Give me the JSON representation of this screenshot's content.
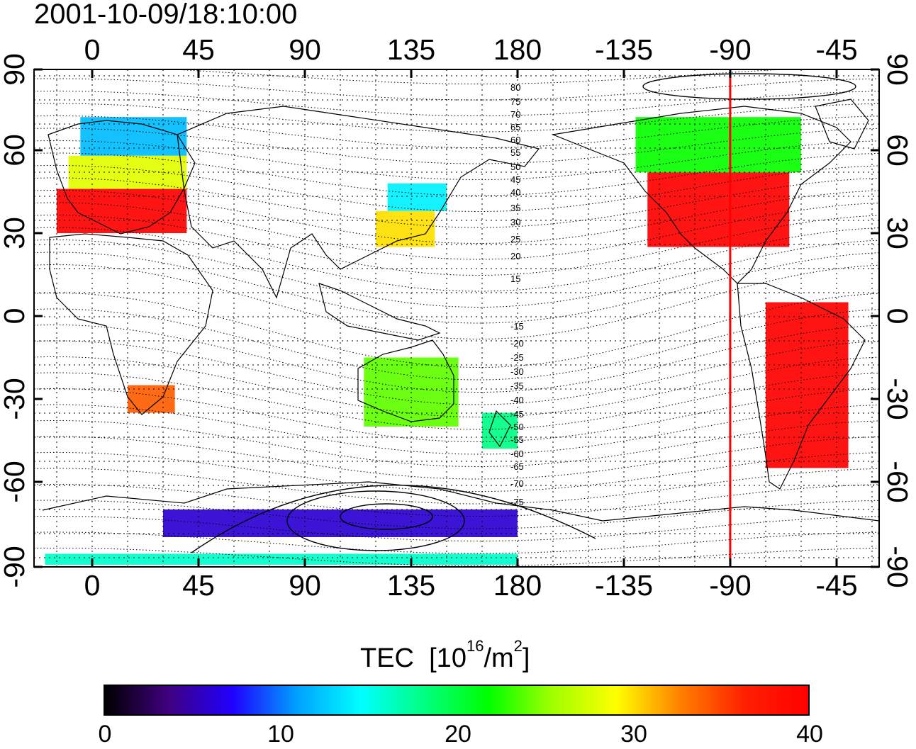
{
  "title": "2001-10-09/18:10:00",
  "lon_ticks": [
    "0",
    "45",
    "90",
    "135",
    "180",
    "-135",
    "-90",
    "-45"
  ],
  "lat_ticks": [
    "90",
    "60",
    "30",
    "0",
    "-30",
    "-60",
    "-90"
  ],
  "colorbar": {
    "label": "TEC",
    "unit_prefix": "[10",
    "unit_exp1": "16",
    "unit_mid": "/m",
    "unit_exp2": "2",
    "unit_suffix": "]",
    "min": 0,
    "max": 40,
    "ticks": [
      "0",
      "10",
      "20",
      "30",
      "40"
    ],
    "colors": [
      "#000000",
      "#400080",
      "#2000ff",
      "#00a0ff",
      "#00ffff",
      "#00ff80",
      "#00ff00",
      "#a0ff00",
      "#ffff00",
      "#ff8000",
      "#ff2000",
      "#ff0000"
    ]
  },
  "contour_labels": [
    "80",
    "75",
    "70",
    "65",
    "60",
    "55",
    "50",
    "45",
    "40",
    "35",
    "30",
    "25",
    "20",
    "15",
    "-15",
    "-20",
    "-25",
    "-30",
    "-35",
    "-40",
    "-45",
    "-50",
    "-55",
    "-60",
    "-65",
    "-70",
    "-75"
  ],
  "marker_longitude": -90,
  "marker_color": "#ff0000",
  "tec_regions": [
    {
      "name": "europe-high-lat",
      "lon": [
        -5,
        40
      ],
      "lat": [
        58,
        72
      ],
      "tec": 12
    },
    {
      "name": "europe-mid",
      "lon": [
        -10,
        40
      ],
      "lat": [
        46,
        58
      ],
      "tec": 28
    },
    {
      "name": "europe-south",
      "lon": [
        -15,
        40
      ],
      "lat": [
        30,
        46
      ],
      "tec": 40
    },
    {
      "name": "east-asia-north",
      "lon": [
        125,
        150
      ],
      "lat": [
        38,
        48
      ],
      "tec": 14
    },
    {
      "name": "east-asia-south",
      "lon": [
        120,
        145
      ],
      "lat": [
        25,
        38
      ],
      "tec": 30
    },
    {
      "name": "north-america",
      "lon": [
        -125,
        -65
      ],
      "lat": [
        25,
        52
      ],
      "tec": 40
    },
    {
      "name": "canada",
      "lon": [
        -130,
        -60
      ],
      "lat": [
        52,
        72
      ],
      "tec": 22
    },
    {
      "name": "south-america",
      "lon": [
        -75,
        -40
      ],
      "lat": [
        -55,
        5
      ],
      "tec": 40
    },
    {
      "name": "australia",
      "lon": [
        115,
        155
      ],
      "lat": [
        -40,
        -15
      ],
      "tec": 24
    },
    {
      "name": "new-zealand",
      "lon": [
        165,
        180
      ],
      "lat": [
        -48,
        -35
      ],
      "tec": 18
    },
    {
      "name": "southern-africa",
      "lon": [
        15,
        35
      ],
      "lat": [
        -35,
        -25
      ],
      "tec": 34
    },
    {
      "name": "antarctica-ring",
      "lon": [
        30,
        180
      ],
      "lat": [
        -80,
        -70
      ],
      "tec": 6
    },
    {
      "name": "antarctica-edge",
      "lon": [
        -20,
        180
      ],
      "lat": [
        -90,
        -86
      ],
      "tec": 16
    }
  ]
}
